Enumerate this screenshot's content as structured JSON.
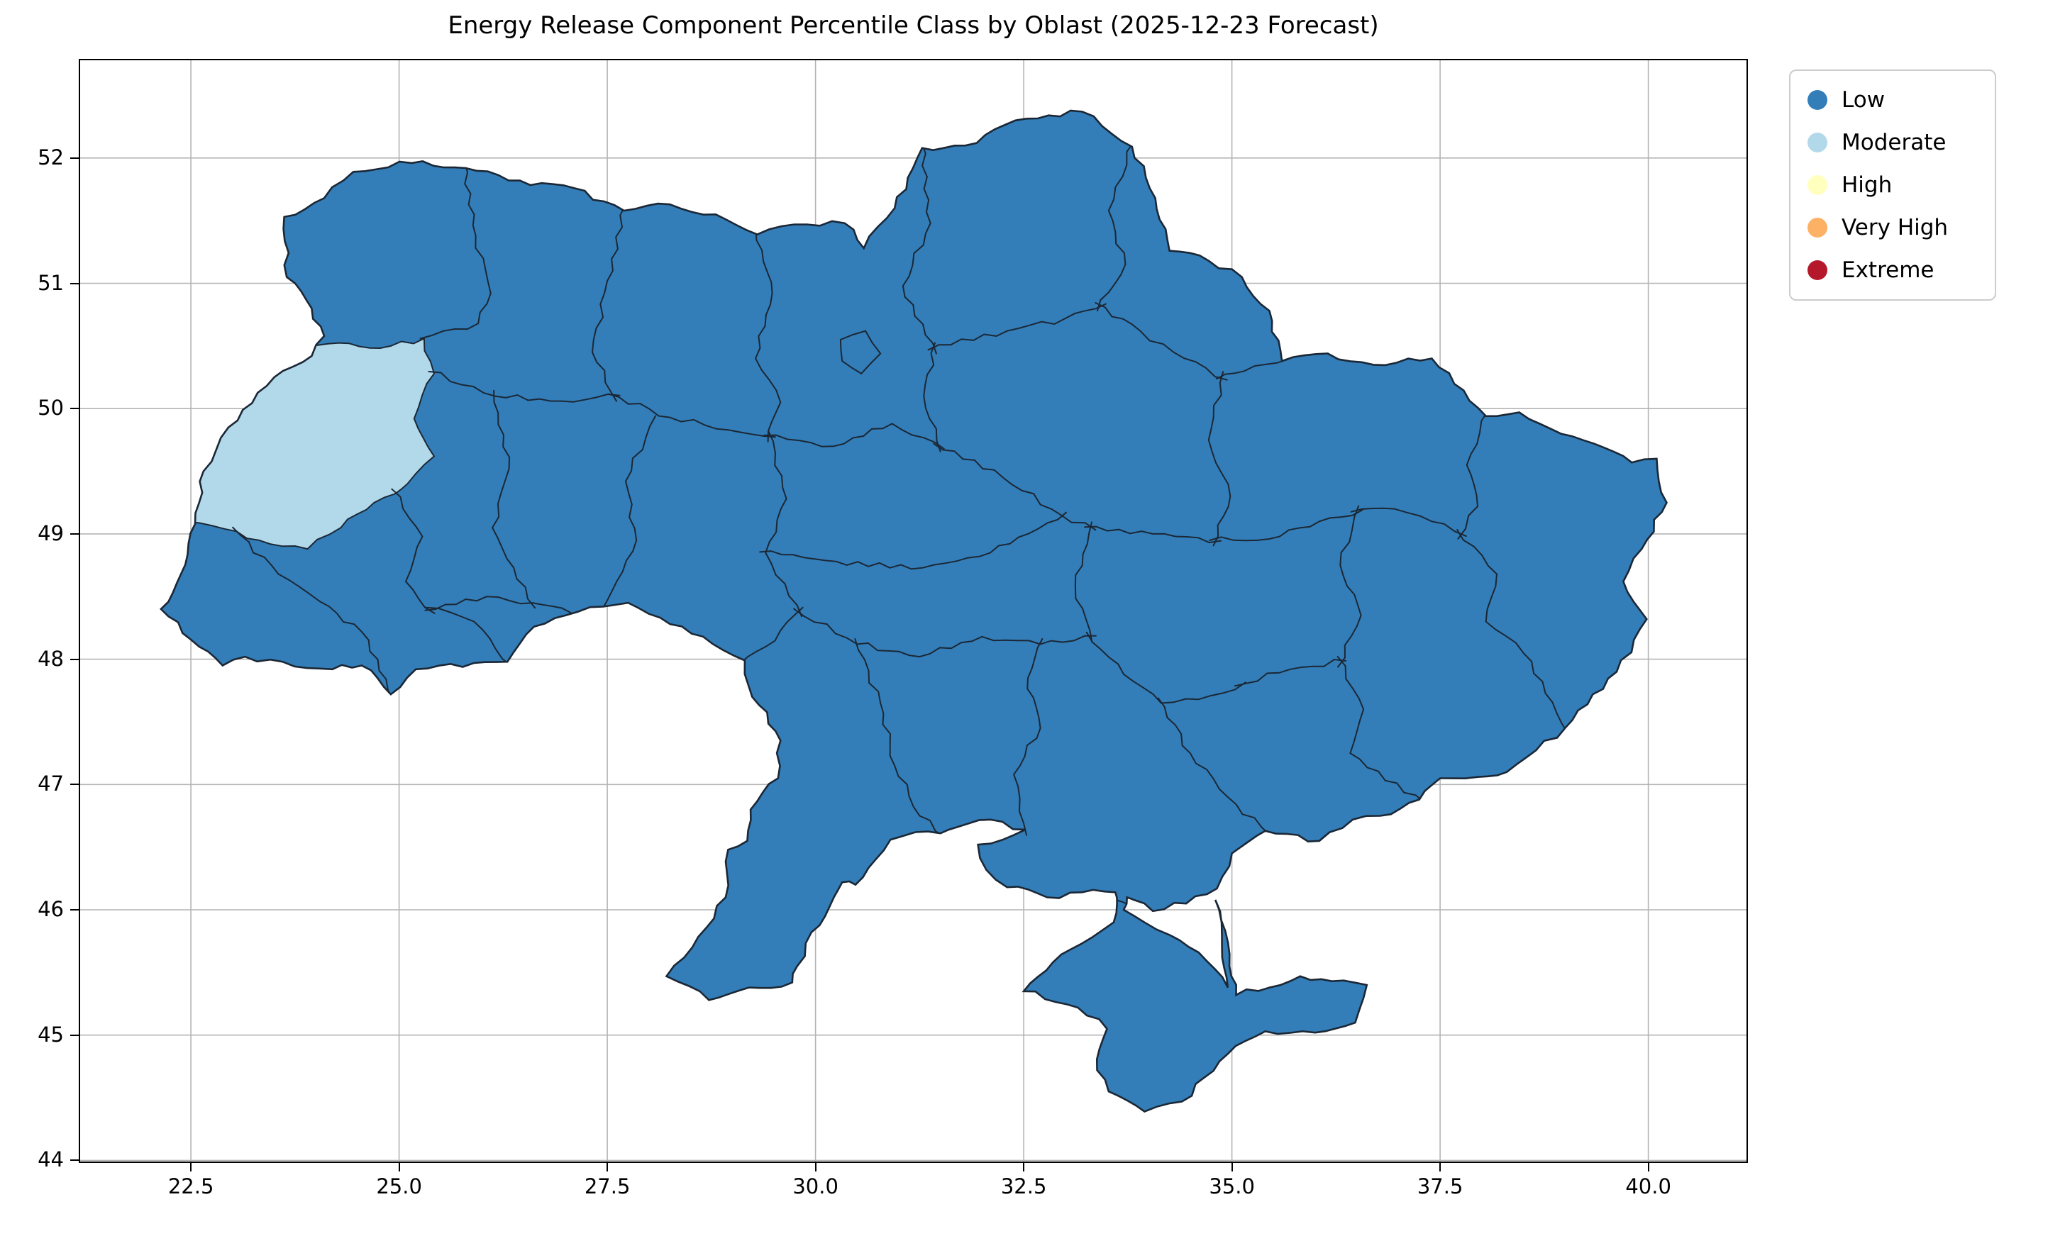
{
  "title": "Energy Release Component Percentile Class by Oblast (2025-12-23 Forecast)",
  "axes": {
    "x_tick_labels": [
      "22.5",
      "25.0",
      "27.5",
      "30.0",
      "32.5",
      "35.0",
      "37.5",
      "40.0"
    ],
    "y_tick_labels": [
      "52",
      "51",
      "50",
      "49",
      "48",
      "47",
      "46",
      "45",
      "44"
    ]
  },
  "legend": {
    "items": [
      {
        "label": "Low",
        "color": "#337eb8"
      },
      {
        "label": "Moderate",
        "color": "#b2d9ea"
      },
      {
        "label": "High",
        "color": "#ffffbe"
      },
      {
        "label": "Very High",
        "color": "#fdb164"
      },
      {
        "label": "Extreme",
        "color": "#b5182b"
      }
    ]
  },
  "chart_data": {
    "type": "choropleth",
    "title": "Energy Release Component Percentile Class by Oblast (2025-12-23 Forecast)",
    "geography": "Ukraine, oblast-level administrative boundaries (incl. Crimea)",
    "x_axis": {
      "ticks": [
        22.5,
        25.0,
        27.5,
        30.0,
        32.5,
        35.0,
        37.5,
        40.0
      ],
      "range": [
        21.17,
        41.18
      ],
      "meaning": "longitude, degrees East"
    },
    "y_axis": {
      "ticks": [
        44,
        45,
        46,
        47,
        48,
        49,
        50,
        51,
        52
      ],
      "range": [
        43.99,
        52.78
      ],
      "meaning": "latitude, degrees North"
    },
    "grid": true,
    "legend_position": "upper right, outside plot area",
    "classes": [
      {
        "label": "Low",
        "color": "#337eb8"
      },
      {
        "label": "Moderate",
        "color": "#b2d9ea"
      },
      {
        "label": "High",
        "color": "#ffffbe"
      },
      {
        "label": "Very High",
        "color": "#fdb164"
      },
      {
        "label": "Extreme",
        "color": "#b5182b"
      }
    ],
    "region_values": [
      {
        "region": "far-western oblast (Lviv area, ~23-25.4E / 48.9-50.6N)",
        "class": "Moderate"
      },
      {
        "region": "all other oblasts including Crimea",
        "class": "Low"
      }
    ],
    "boundary_color": "#1b2735",
    "background": "#ffffff"
  }
}
